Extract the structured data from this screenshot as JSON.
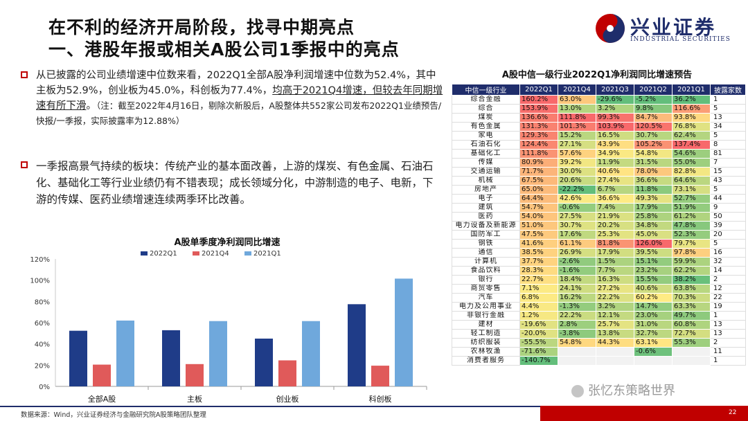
{
  "header": {
    "title_line1": "在不利的经济开局阶段，找寻中期亮点",
    "title_line2": "一、港股年报或相关A股公司1季报中的亮点"
  },
  "logo": {
    "cn": "兴业证券",
    "en": "INDUSTRIAL SECURITIES"
  },
  "bullets": {
    "b1_part1": "从已披露的公司业绩增速中位数来看，2022Q1全部A股净利润增速中位数为52.4%，其中主板为52.9%，创业板为45.0%，科创板为77.4%，",
    "b1_underline": "均高于2021Q4增速，但较去年同期增速有所下滑",
    "b1_part2": "。",
    "b1_note": "（注：截至2022年4月16日，剔除次新股后，A股整体共552家公司发布2022Q1业绩预告/快报/一季报，实际披露率为12.88%）",
    "b2": "一季报高景气持续的板块：传统产业的基本面改善，上游的煤炭、有色金属、石油石化、基础化工等行业业绩仍有不错表现；成长领域分化，中游制造的电子、电新，下游的传媒、医药业绩增速连续两季环比改善。"
  },
  "chart_data": {
    "type": "bar",
    "title": "A股单季度净利润同比增速",
    "categories": [
      "全部A股",
      "主板",
      "创业板",
      "科创板"
    ],
    "series": [
      {
        "name": "2022Q1",
        "color": "#1f3c88",
        "values": [
          52.4,
          52.9,
          45.0,
          77.4
        ]
      },
      {
        "name": "2021Q4",
        "color": "#e05a5a",
        "values": [
          20.5,
          21.0,
          24.5,
          19.5
        ]
      },
      {
        "name": "2021Q1",
        "color": "#6fa8dc",
        "values": [
          62.0,
          61.5,
          61.5,
          101.5
        ]
      }
    ],
    "ylim": [
      0,
      120
    ],
    "yticks": [
      "0%",
      "20%",
      "40%",
      "60%",
      "80%",
      "100%",
      "120%"
    ],
    "grid": false,
    "legend": "top"
  },
  "table": {
    "title": "A股中信一级行业2022Q1净利润同比增速预告",
    "headers": [
      "中信一级行业",
      "2022Q1",
      "2021Q4",
      "2021Q3",
      "2021Q2",
      "2021Q1",
      "披露家数"
    ],
    "rows": [
      [
        "综合金融",
        "160.2%",
        "63.0%",
        "-29.6%",
        "-5.2%",
        "36.2%",
        "1"
      ],
      [
        "综合",
        "153.9%",
        "13.0%",
        "3.2%",
        "9.8%",
        "116.6%",
        "5"
      ],
      [
        "煤炭",
        "136.6%",
        "111.8%",
        "99.3%",
        "84.7%",
        "93.8%",
        "13"
      ],
      [
        "有色金属",
        "131.3%",
        "101.3%",
        "103.9%",
        "120.5%",
        "76.8%",
        "34"
      ],
      [
        "家电",
        "129.3%",
        "15.2%",
        "16.5%",
        "30.7%",
        "62.4%",
        "5"
      ],
      [
        "石油石化",
        "124.4%",
        "27.1%",
        "43.9%",
        "105.2%",
        "137.4%",
        "8"
      ],
      [
        "基础化工",
        "111.8%",
        "57.6%",
        "34.9%",
        "54.8%",
        "54.6%",
        "81"
      ],
      [
        "传媒",
        "80.9%",
        "39.2%",
        "11.9%",
        "31.5%",
        "55.0%",
        "7"
      ],
      [
        "交通运输",
        "71.7%",
        "30.0%",
        "40.6%",
        "78.0%",
        "82.8%",
        "15"
      ],
      [
        "机械",
        "67.5%",
        "20.6%",
        "27.4%",
        "36.6%",
        "64.6%",
        "43"
      ],
      [
        "房地产",
        "65.0%",
        "-22.2%",
        "6.7%",
        "11.8%",
        "73.1%",
        "5"
      ],
      [
        "电子",
        "64.4%",
        "42.6%",
        "36.6%",
        "49.3%",
        "52.7%",
        "44"
      ],
      [
        "建筑",
        "54.7%",
        "-0.6%",
        "7.4%",
        "17.9%",
        "51.9%",
        "9"
      ],
      [
        "医药",
        "54.0%",
        "27.5%",
        "21.9%",
        "25.8%",
        "61.2%",
        "50"
      ],
      [
        "电力设备及新能源",
        "51.0%",
        "30.7%",
        "20.2%",
        "34.8%",
        "47.8%",
        "39"
      ],
      [
        "国防军工",
        "47.5%",
        "17.6%",
        "25.3%",
        "45.0%",
        "52.3%",
        "20"
      ],
      [
        "钢铁",
        "41.6%",
        "61.1%",
        "81.8%",
        "126.0%",
        "79.7%",
        "5"
      ],
      [
        "通信",
        "38.5%",
        "26.9%",
        "17.9%",
        "39.5%",
        "97.8%",
        "16"
      ],
      [
        "计算机",
        "37.7%",
        "-2.6%",
        "1.5%",
        "15.1%",
        "59.9%",
        "32"
      ],
      [
        "食品饮料",
        "28.3%",
        "-1.6%",
        "7.7%",
        "23.2%",
        "62.2%",
        "14"
      ],
      [
        "银行",
        "22.7%",
        "18.4%",
        "16.3%",
        "15.5%",
        "38.2%",
        "2"
      ],
      [
        "商贸零售",
        "7.1%",
        "24.1%",
        "27.2%",
        "40.6%",
        "63.8%",
        "12"
      ],
      [
        "汽车",
        "6.8%",
        "16.2%",
        "22.2%",
        "60.2%",
        "70.3%",
        "22"
      ],
      [
        "电力及公用事业",
        "4.4%",
        "-1.3%",
        "3.2%",
        "14.7%",
        "63.3%",
        "19"
      ],
      [
        "非银行金融",
        "1.2%",
        "22.2%",
        "12.1%",
        "23.0%",
        "49.7%",
        "1"
      ],
      [
        "建材",
        "-19.6%",
        "2.8%",
        "25.7%",
        "31.0%",
        "60.8%",
        "13"
      ],
      [
        "轻工制造",
        "-20.0%",
        "-3.8%",
        "13.8%",
        "32.7%",
        "72.7%",
        "13"
      ],
      [
        "纺织服装",
        "-55.5%",
        "54.8%",
        "44.3%",
        "63.1%",
        "55.3%",
        "2"
      ],
      [
        "农林牧渔",
        "-71.6%",
        "",
        "",
        "-0.6%",
        "",
        "11"
      ],
      [
        "消费者服务",
        "-140.7%",
        "",
        "",
        "",
        "",
        "1"
      ]
    ]
  },
  "footer": {
    "source": "数据来源：Wind，兴业证券经济与金融研究院A股策略团队整理",
    "page": "22"
  },
  "watermark": "张忆东策略世界",
  "colors": {
    "navy": "#1f2d6b",
    "red": "#c00000"
  }
}
